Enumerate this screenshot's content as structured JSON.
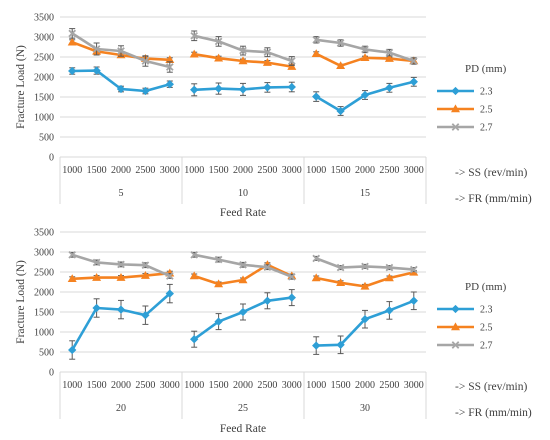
{
  "chart_data": [
    {
      "type": "line",
      "ylabel": "Fracture Load (N)",
      "xlabel": "Feed Rate",
      "ylim": [
        0,
        3500
      ],
      "yticks": [
        0,
        500,
        1000,
        1500,
        2000,
        2500,
        3000,
        3500
      ],
      "ss_ticks": [
        "1000",
        "1500",
        "2000",
        "2500",
        "3000"
      ],
      "fr_groups": [
        "5",
        "10",
        "15"
      ],
      "ss_axis_label": "-> SS (rev/min)",
      "fr_axis_label": "-> FR (mm/min)",
      "legend_title": "PD (mm)",
      "legend_position": "right",
      "grid": true,
      "series": [
        {
          "name": "2.3",
          "color": "#2e9fd6",
          "marker": "diamond",
          "values": [
            2150,
            2160,
            1700,
            1650,
            1820,
            1680,
            1710,
            1690,
            1740,
            1750,
            1510,
            1150,
            1550,
            1730,
            1880
          ],
          "errors": [
            80,
            90,
            70,
            70,
            80,
            150,
            140,
            150,
            120,
            120,
            120,
            110,
            110,
            110,
            110
          ]
        },
        {
          "name": "2.5",
          "color": "#f58220",
          "marker": "triangle",
          "values": [
            2870,
            2640,
            2550,
            2460,
            2430,
            2570,
            2470,
            2400,
            2360,
            2260,
            2580,
            2280,
            2480,
            2460,
            2400
          ],
          "errors": [
            60,
            60,
            50,
            50,
            50,
            50,
            50,
            50,
            50,
            50,
            50,
            40,
            40,
            40,
            40
          ]
        },
        {
          "name": "2.7",
          "color": "#a6a6a6",
          "marker": "x",
          "values": [
            3090,
            2700,
            2650,
            2400,
            2250,
            3030,
            2890,
            2660,
            2620,
            2400,
            2930,
            2850,
            2690,
            2610,
            2400
          ],
          "errors": [
            120,
            150,
            130,
            130,
            130,
            120,
            120,
            110,
            110,
            110,
            80,
            80,
            80,
            80,
            80
          ]
        }
      ]
    },
    {
      "type": "line",
      "ylabel": "Fracture Load (N)",
      "xlabel": "Feed Rate",
      "ylim": [
        0,
        3500
      ],
      "yticks": [
        0,
        500,
        1000,
        1500,
        2000,
        2500,
        3000,
        3500
      ],
      "ss_ticks": [
        "1000",
        "1500",
        "2000",
        "2500",
        "3000"
      ],
      "fr_groups": [
        "20",
        "25",
        "30"
      ],
      "ss_axis_label": "-> SS (rev/min)",
      "fr_axis_label": "-> FR (mm/min)",
      "legend_title": "PD (mm)",
      "legend_position": "right",
      "grid": true,
      "series": [
        {
          "name": "2.3",
          "color": "#2e9fd6",
          "marker": "diamond",
          "values": [
            550,
            1600,
            1560,
            1420,
            1960,
            820,
            1260,
            1500,
            1780,
            1860,
            660,
            680,
            1320,
            1540,
            1780
          ],
          "errors": [
            230,
            230,
            230,
            230,
            230,
            200,
            200,
            200,
            200,
            200,
            220,
            220,
            220,
            220,
            220
          ]
        },
        {
          "name": "2.5",
          "color": "#f58220",
          "marker": "triangle",
          "values": [
            2330,
            2360,
            2360,
            2410,
            2470,
            2400,
            2200,
            2300,
            2680,
            2400,
            2350,
            2230,
            2140,
            2350,
            2490
          ],
          "errors": [
            50,
            50,
            50,
            50,
            50,
            50,
            50,
            50,
            50,
            50,
            50,
            50,
            50,
            50,
            50
          ]
        },
        {
          "name": "2.7",
          "color": "#a6a6a6",
          "marker": "x",
          "values": [
            2930,
            2740,
            2690,
            2670,
            2400,
            2930,
            2810,
            2680,
            2620,
            2380,
            2840,
            2610,
            2640,
            2610,
            2560
          ],
          "errors": [
            60,
            60,
            60,
            60,
            60,
            60,
            60,
            60,
            60,
            60,
            50,
            50,
            50,
            50,
            50
          ]
        }
      ]
    }
  ]
}
